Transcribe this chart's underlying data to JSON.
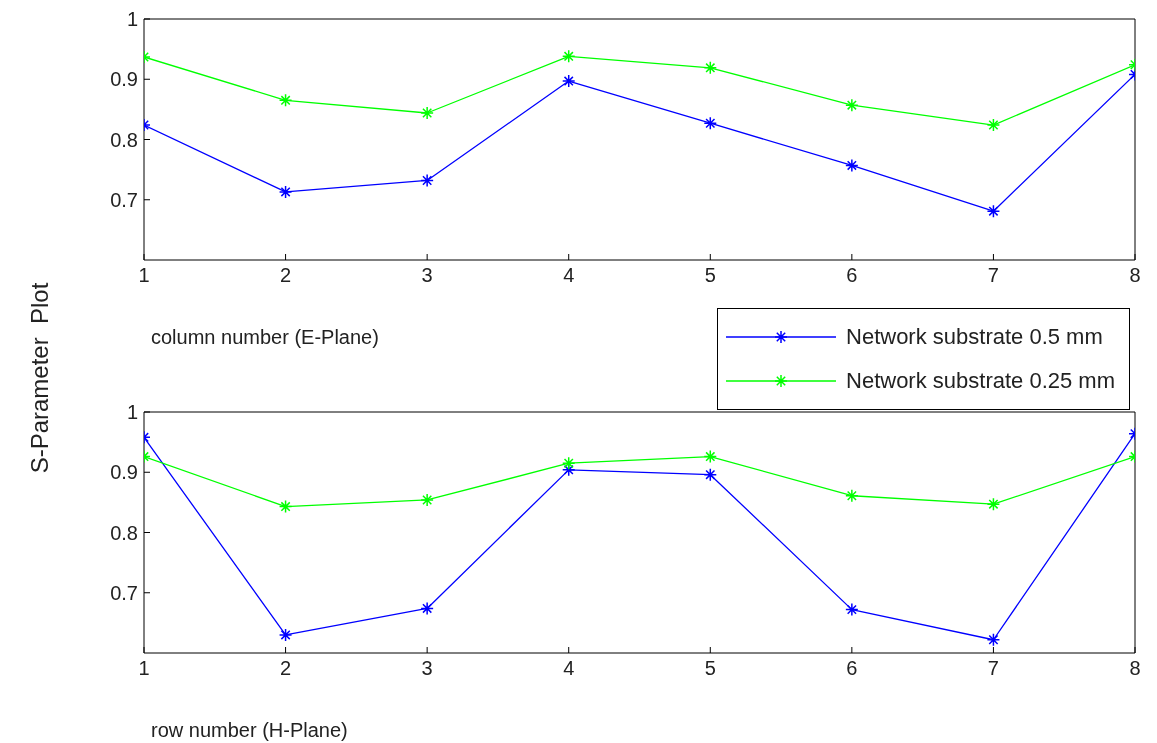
{
  "chart_data": [
    {
      "type": "line",
      "xlabel": "column number (E-Plane)",
      "ylabel": "S-Parameter  Plot",
      "x": [
        1,
        2,
        3,
        4,
        5,
        6,
        7,
        8
      ],
      "xlim": [
        1,
        8
      ],
      "xticks": [
        1,
        2,
        3,
        4,
        5,
        6,
        7,
        8
      ],
      "ylim": [
        0.6,
        1
      ],
      "yticks": [
        0.7,
        0.8,
        0.9,
        1
      ],
      "marker": "cross",
      "line_style": "solid",
      "grid": false,
      "legend": "bottom right",
      "series": [
        {
          "name": "Network substrate 0.5 mm",
          "color": "#0000ff",
          "values": [
            0.824,
            0.713,
            0.732,
            0.897,
            0.827,
            0.757,
            0.681,
            0.908
          ]
        },
        {
          "name": "Network substrate 0.25 mm",
          "color": "#00ff00",
          "values": [
            0.937,
            0.865,
            0.844,
            0.938,
            0.919,
            0.857,
            0.824,
            0.924
          ]
        }
      ]
    },
    {
      "type": "line",
      "xlabel": "row number (H-Plane)",
      "x": [
        1,
        2,
        3,
        4,
        5,
        6,
        7,
        8
      ],
      "xlim": [
        1,
        8
      ],
      "xticks": [
        1,
        2,
        3,
        4,
        5,
        6,
        7,
        8
      ],
      "ylim": [
        0.6,
        1
      ],
      "yticks": [
        0.7,
        0.8,
        0.9,
        1
      ],
      "marker": "cross",
      "line_style": "solid",
      "grid": false,
      "series": [
        {
          "color": "#0000ff",
          "values": [
            0.958,
            0.63,
            0.674,
            0.904,
            0.896,
            0.672,
            0.622,
            0.964
          ]
        },
        {
          "color": "#00ff00",
          "values": [
            0.926,
            0.843,
            0.854,
            0.915,
            0.926,
            0.861,
            0.847,
            0.926
          ]
        }
      ]
    }
  ]
}
